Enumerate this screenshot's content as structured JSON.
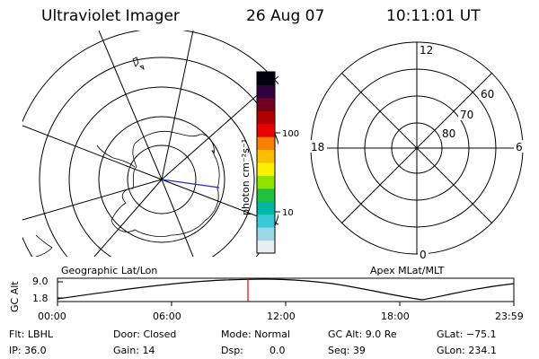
{
  "header": {
    "instrument": "Ultraviolet Imager",
    "date": "26 Aug 07",
    "time": "10:11:01 UT"
  },
  "colorbar": {
    "unit_label": "photon cm⁻²s⁻¹",
    "tick_labels": [
      "100",
      "10"
    ],
    "colors": [
      "#e8eef4",
      "#9ad8e8",
      "#38c8d8",
      "#00b8a8",
      "#20c040",
      "#90e000",
      "#f8f000",
      "#f8c000",
      "#f88000",
      "#e80000",
      "#b00000",
      "#700020",
      "#300040",
      "#000010"
    ]
  },
  "geo_map": {
    "label": "Geographic Lat/Lon"
  },
  "polar_grid": {
    "label": "Apex MLat/MLT",
    "mlt_labels": [
      "12",
      "18",
      "6",
      "0"
    ],
    "mlat_labels": [
      "60",
      "70",
      "80"
    ]
  },
  "altitude_plot": {
    "y_label": "GC Alt",
    "y_ticks": [
      "9.0",
      "1.8"
    ],
    "x_ticks": [
      "00:00",
      "06:00",
      "12:00",
      "18:00",
      "23:59"
    ]
  },
  "footer": {
    "filter": "Flt: LBHL",
    "ip": "IP: 36.0",
    "door": "Door: Closed",
    "gain": "Gain: 14",
    "mode": "Mode: Normal",
    "dsp_label": "Dsp:",
    "dsp_value": "0.0",
    "gc_alt": "GC Alt: 9.0 Re",
    "seq": "Seq: 39",
    "glat": "GLat: −75.1",
    "glon": "GLon: 234.1"
  }
}
